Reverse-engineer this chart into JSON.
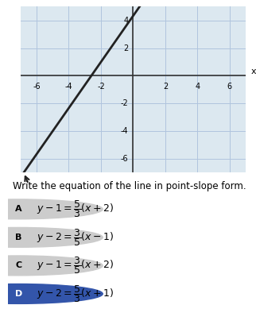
{
  "title": "Write the equation of the line in point-slope form.",
  "graph_xlim": [
    -7,
    7
  ],
  "graph_ylim": [
    -7,
    5
  ],
  "xticks": [
    -6,
    -4,
    -2,
    0,
    2,
    4,
    6
  ],
  "yticks": [
    -6,
    -4,
    -2,
    0,
    2,
    4
  ],
  "line_x": [
    -3.2,
    1.2
  ],
  "line_slope": 1.6667,
  "line_point": [
    -2,
    1
  ],
  "line_color": "#222222",
  "grid_color": "#b0c4de",
  "axis_color": "#333333",
  "bg_color": "#dce8f0",
  "options": [
    {
      "label": "A",
      "text": "$y - 1 = \\dfrac{5}{3}(x + 2)$",
      "selected": false,
      "circle_color": "#cccccc"
    },
    {
      "label": "B",
      "text": "$y - 2 = \\dfrac{3}{5}(x - 1)$",
      "selected": false,
      "circle_color": "#cccccc"
    },
    {
      "label": "C",
      "text": "$y - 1 = \\dfrac{3}{5}(x + 2)$",
      "selected": false,
      "circle_color": "#cccccc"
    },
    {
      "label": "D",
      "text": "$y - 2 = \\dfrac{5}{3}(x + 1)$",
      "selected": true,
      "circle_color": "#3355aa"
    }
  ],
  "figsize": [
    3.22,
    4.18
  ],
  "dpi": 100
}
